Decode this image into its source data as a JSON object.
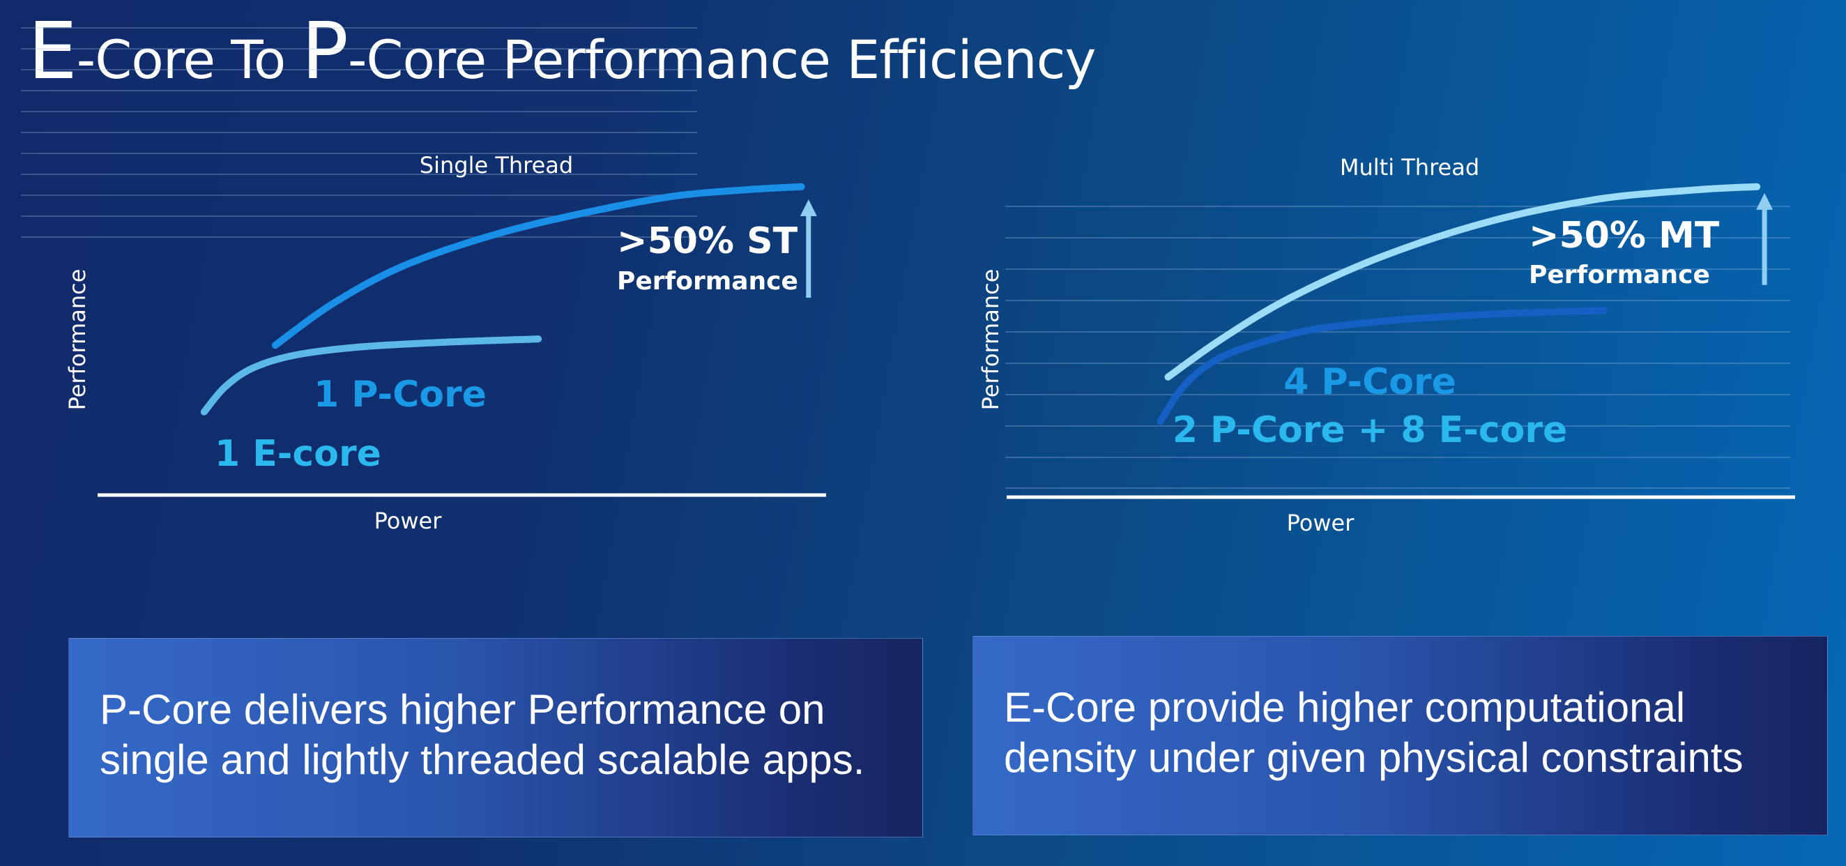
{
  "title": {
    "e_letter": "E",
    "part1": "-Core To ",
    "p_letter": "P",
    "part2": "-Core Performance Efficiency"
  },
  "chart_data": [
    {
      "type": "line",
      "title": "Single Thread",
      "xlabel": "Power",
      "ylabel": "Performance",
      "grid": true,
      "xlim": [
        0,
        100
      ],
      "ylim": [
        0,
        100
      ],
      "series": [
        {
          "name": "1 P-Core",
          "color": "#1a8fe8",
          "label_color": "#1a9ae6",
          "x": [
            24,
            32,
            42,
            55,
            68,
            80,
            90,
            98
          ],
          "y": [
            45,
            58,
            70,
            80,
            87,
            92,
            94,
            95
          ]
        },
        {
          "name": "1 E-core",
          "color": "#5cb8e8",
          "label_color": "#2ab8ee",
          "x": [
            14,
            17,
            21,
            27,
            36,
            48,
            61
          ],
          "y": [
            24,
            32,
            38,
            42,
            44.5,
            46,
            47
          ]
        }
      ],
      "annotation": {
        "value": ">50% ST",
        "label": "Performance",
        "arrow_x": 99,
        "arrow_y_from": 60,
        "arrow_y_to": 91
      }
    },
    {
      "type": "line",
      "title": "Multi Thread",
      "xlabel": "Power",
      "ylabel": "Performance",
      "grid": true,
      "xlim": [
        0,
        100
      ],
      "ylim": [
        0,
        100
      ],
      "series": [
        {
          "name": "2 P-Core + 8 E-core",
          "color": "#9ddcf6",
          "label_color": "#2ab8ee",
          "x": [
            18,
            25,
            34,
            46,
            60,
            74,
            87,
            95
          ],
          "y": [
            35,
            47,
            60,
            73,
            84,
            91,
            94,
            95
          ]
        },
        {
          "name": "4 P-Core",
          "color": "#1560c4",
          "label_color": "#1a9ae6",
          "x": [
            17,
            20,
            24,
            29,
            37,
            48,
            62,
            75
          ],
          "y": [
            21,
            32,
            40,
            45,
            50,
            53,
            55,
            56
          ]
        }
      ],
      "annotation": {
        "value": ">50% MT",
        "label": "Performance",
        "arrow_x": 96,
        "arrow_y_from": 64,
        "arrow_y_to": 93
      }
    }
  ],
  "callouts": {
    "left": {
      "line1": "P-Core delivers higher Performance on",
      "line2": "single and lightly threaded scalable apps."
    },
    "right": {
      "line1": "E-Core provide higher computational",
      "line2": "density under given physical constraints"
    }
  }
}
